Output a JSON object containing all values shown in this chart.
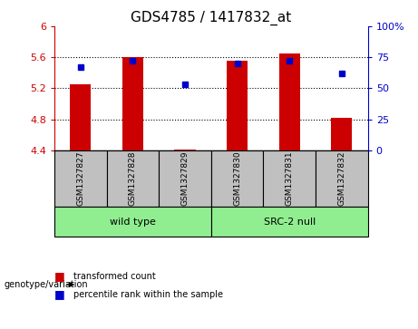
{
  "title": "GDS4785 / 1417832_at",
  "samples": [
    "GSM1327827",
    "GSM1327828",
    "GSM1327829",
    "GSM1327830",
    "GSM1327831",
    "GSM1327832"
  ],
  "transformed_counts": [
    5.25,
    5.6,
    4.41,
    5.55,
    5.65,
    4.82
  ],
  "percentile_ranks": [
    67,
    72,
    53,
    70,
    72,
    62
  ],
  "ylim_left": [
    4.4,
    6.0
  ],
  "ylim_right": [
    0,
    100
  ],
  "yticks_left": [
    4.4,
    4.8,
    5.2,
    5.6,
    6.0
  ],
  "yticks_right": [
    0,
    25,
    50,
    75,
    100
  ],
  "ytick_labels_left": [
    "4.4",
    "4.8",
    "5.2",
    "5.6",
    "6"
  ],
  "ytick_labels_right": [
    "0",
    "25",
    "50",
    "75",
    "100%"
  ],
  "bar_color": "#cc0000",
  "dot_color": "#0000cc",
  "bar_width": 0.4,
  "sample_box_color": "#c0c0c0",
  "genotype_label": "genotype/variation",
  "legend_items": [
    "transformed count",
    "percentile rank within the sample"
  ],
  "legend_colors": [
    "#cc0000",
    "#0000cc"
  ],
  "wt_color": "#90EE90",
  "src_color": "#90EE90",
  "grid_yticks": [
    4.8,
    5.2,
    5.6
  ]
}
